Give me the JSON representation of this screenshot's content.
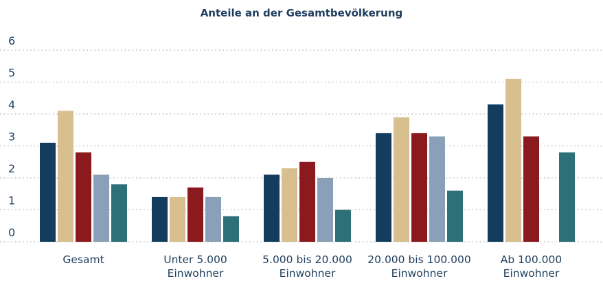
{
  "chart_data": {
    "type": "bar",
    "title": "Anteile an der Gesamtbevölkerung",
    "categories": [
      "Gesamt",
      "Unter 5.000 Einwohner",
      "5.000 bis 20.000 Einwohner",
      "20.000 bis 100.000 Einwohner",
      "Ab 100.000 Einwohner"
    ],
    "series": [
      {
        "color": "#143c5e",
        "values": [
          3.1,
          1.4,
          2.1,
          3.4,
          4.3
        ]
      },
      {
        "color": "#d8bf8f",
        "values": [
          4.1,
          1.4,
          2.3,
          3.9,
          5.1
        ]
      },
      {
        "color": "#8a1a1e",
        "values": [
          2.8,
          1.7,
          2.5,
          3.4,
          3.3
        ]
      },
      {
        "color": "#8aa0b8",
        "values": [
          2.1,
          1.4,
          2.0,
          3.3,
          null
        ]
      },
      {
        "color": "#2e7077",
        "values": [
          1.8,
          0.8,
          1.0,
          1.6,
          2.8
        ]
      }
    ],
    "ylim": [
      0,
      6
    ],
    "yticks": [
      0,
      1,
      2,
      3,
      4,
      5,
      6
    ],
    "grid": true
  }
}
